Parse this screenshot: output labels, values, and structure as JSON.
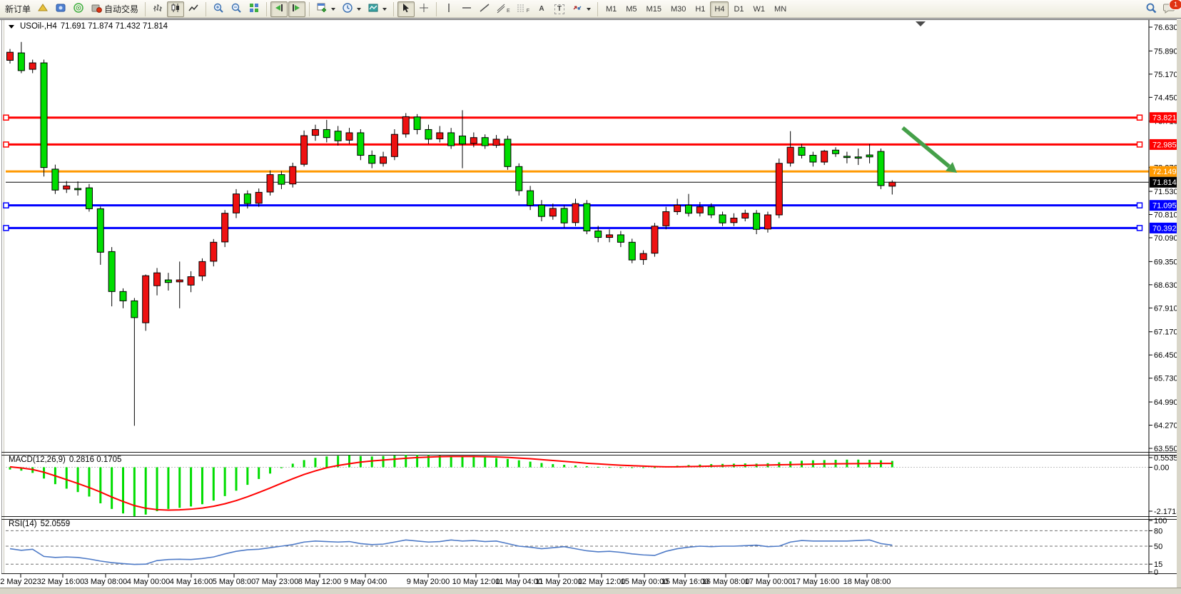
{
  "toolbar": {
    "new_order_label": "新订单",
    "autotrade_label": "自动交易",
    "notification_badge": "1",
    "tool_letters": {
      "text": "A",
      "label": "T",
      "channel": "E",
      "fibo": "F"
    },
    "timeframes": {
      "items": [
        "M1",
        "M5",
        "M15",
        "M30",
        "H1",
        "H4",
        "D1",
        "W1",
        "MN"
      ],
      "active": "H4"
    }
  },
  "chart": {
    "title_symbol": "USOil-,H4",
    "title_ohlc": "71.691 71.874 71.432 71.814",
    "price_axis_ticks": [
      "76.630",
      "75.890",
      "75.170",
      "74.450",
      "73.710",
      "72.270",
      "71.530",
      "70.810",
      "70.090",
      "69.350",
      "68.630",
      "67.910",
      "67.170",
      "66.450",
      "65.730",
      "64.990",
      "64.270",
      "63.550"
    ],
    "hlines": [
      {
        "price": 73.821,
        "label": "73.821",
        "color": "#ff0000",
        "width": 3,
        "to_axis": false
      },
      {
        "price": 72.985,
        "label": "72.985",
        "color": "#ff0000",
        "width": 3,
        "to_axis": false
      },
      {
        "price": 72.149,
        "label": "72.149",
        "color": "#ff9900",
        "width": 3,
        "to_axis": true
      },
      {
        "price": 71.095,
        "label": "71.095",
        "color": "#0000ff",
        "width": 3,
        "to_axis": false
      },
      {
        "price": 70.392,
        "label": "70.392",
        "color": "#0000ff",
        "width": 3,
        "to_axis": false
      }
    ],
    "current_price": {
      "price": 71.814,
      "label": "71.814",
      "color": "#000000"
    },
    "colors": {
      "up": "#ee1111",
      "down": "#00dd00",
      "wick": "#000000",
      "arrow": "#45a049"
    },
    "candles": [
      [
        75.6,
        75.95,
        75.5,
        75.85
      ],
      [
        75.83,
        76.17,
        75.2,
        75.28
      ],
      [
        75.32,
        75.62,
        75.2,
        75.52
      ],
      [
        75.52,
        75.62,
        71.99,
        72.27
      ],
      [
        72.22,
        72.36,
        71.45,
        71.57
      ],
      [
        71.6,
        71.85,
        71.48,
        71.7
      ],
      [
        71.62,
        71.84,
        71.4,
        71.58
      ],
      [
        71.64,
        71.76,
        70.9,
        70.99
      ],
      [
        70.99,
        71.06,
        69.25,
        69.64
      ],
      [
        69.66,
        69.8,
        67.96,
        68.42
      ],
      [
        68.42,
        68.52,
        67.9,
        68.13
      ],
      [
        68.13,
        68.22,
        64.25,
        67.61
      ],
      [
        67.45,
        68.95,
        67.2,
        68.91
      ],
      [
        68.6,
        69.15,
        68.3,
        69.0
      ],
      [
        68.78,
        69.0,
        68.45,
        68.7
      ],
      [
        68.72,
        69.35,
        67.9,
        68.78
      ],
      [
        68.62,
        69.05,
        68.4,
        68.88
      ],
      [
        68.9,
        69.45,
        68.75,
        69.35
      ],
      [
        69.36,
        70.05,
        69.2,
        69.95
      ],
      [
        69.96,
        70.95,
        69.8,
        70.85
      ],
      [
        70.86,
        71.6,
        70.7,
        71.45
      ],
      [
        71.45,
        71.56,
        71.0,
        71.15
      ],
      [
        71.16,
        71.62,
        71.05,
        71.5
      ],
      [
        71.51,
        72.18,
        71.4,
        72.05
      ],
      [
        72.05,
        72.16,
        71.6,
        71.75
      ],
      [
        71.76,
        72.42,
        71.65,
        72.3
      ],
      [
        72.37,
        73.42,
        72.3,
        73.26
      ],
      [
        73.27,
        73.6,
        73.1,
        73.45
      ],
      [
        73.45,
        73.75,
        73.05,
        73.2
      ],
      [
        73.4,
        73.56,
        72.95,
        73.1
      ],
      [
        73.12,
        73.5,
        73.0,
        73.35
      ],
      [
        73.35,
        73.46,
        72.5,
        72.65
      ],
      [
        72.65,
        72.8,
        72.25,
        72.4
      ],
      [
        72.4,
        72.76,
        72.3,
        72.6
      ],
      [
        72.61,
        73.46,
        72.5,
        73.3
      ],
      [
        73.31,
        73.96,
        73.2,
        73.85
      ],
      [
        73.84,
        73.93,
        73.3,
        73.45
      ],
      [
        73.45,
        73.6,
        73.0,
        73.15
      ],
      [
        73.16,
        73.56,
        73.05,
        73.35
      ],
      [
        73.35,
        73.5,
        72.85,
        72.95
      ],
      [
        73.25,
        74.05,
        72.25,
        73.0
      ],
      [
        73.02,
        73.36,
        72.9,
        73.2
      ],
      [
        73.2,
        73.3,
        72.85,
        72.95
      ],
      [
        72.96,
        73.28,
        72.88,
        73.15
      ],
      [
        73.15,
        73.26,
        72.2,
        72.3
      ],
      [
        72.3,
        72.4,
        71.4,
        71.55
      ],
      [
        71.55,
        71.7,
        70.95,
        71.1
      ],
      [
        71.1,
        71.26,
        70.6,
        70.75
      ],
      [
        70.76,
        71.15,
        70.65,
        71.0
      ],
      [
        71.0,
        71.1,
        70.4,
        70.55
      ],
      [
        70.56,
        71.3,
        70.45,
        71.15
      ],
      [
        71.15,
        71.26,
        70.2,
        70.3
      ],
      [
        70.3,
        70.46,
        69.95,
        70.1
      ],
      [
        70.1,
        70.35,
        69.95,
        70.18
      ],
      [
        70.18,
        70.3,
        69.8,
        69.95
      ],
      [
        69.95,
        70.06,
        69.3,
        69.4
      ],
      [
        69.41,
        69.7,
        69.25,
        69.6
      ],
      [
        69.61,
        70.55,
        69.5,
        70.45
      ],
      [
        70.46,
        71.05,
        70.35,
        70.9
      ],
      [
        70.9,
        71.3,
        70.8,
        71.1
      ],
      [
        71.1,
        71.45,
        70.75,
        70.85
      ],
      [
        70.86,
        71.2,
        70.75,
        71.05
      ],
      [
        71.05,
        71.16,
        70.7,
        70.8
      ],
      [
        70.8,
        70.9,
        70.45,
        70.55
      ],
      [
        70.56,
        70.85,
        70.45,
        70.7
      ],
      [
        70.7,
        70.96,
        70.6,
        70.85
      ],
      [
        70.85,
        70.95,
        70.2,
        70.35
      ],
      [
        70.36,
        70.9,
        70.25,
        70.8
      ],
      [
        70.8,
        72.55,
        70.7,
        72.4
      ],
      [
        72.41,
        73.4,
        72.3,
        72.9
      ],
      [
        72.9,
        73.0,
        72.55,
        72.65
      ],
      [
        72.65,
        72.76,
        72.3,
        72.44
      ],
      [
        72.44,
        72.82,
        72.35,
        72.78
      ],
      [
        72.81,
        72.9,
        72.6,
        72.7
      ],
      [
        72.62,
        72.76,
        72.4,
        72.58
      ],
      [
        72.6,
        72.86,
        72.35,
        72.56
      ],
      [
        72.66,
        73.0,
        72.4,
        72.6
      ],
      [
        72.77,
        72.86,
        71.6,
        71.71
      ],
      [
        71.691,
        71.874,
        71.432,
        71.814
      ]
    ]
  },
  "macd": {
    "label": "MACD(12,26,9)",
    "values": "0.2816 0.1705",
    "scale_max": "0.5535",
    "zero": "0.00",
    "scale_min": "-2.1713",
    "colors": {
      "hist": "#00dd00",
      "signal": "#ff0000"
    },
    "histogram": [
      -0.1,
      -0.15,
      -0.25,
      -0.5,
      -0.75,
      -0.95,
      -1.1,
      -1.3,
      -1.6,
      -1.85,
      -2.05,
      -2.17,
      -2.1,
      -1.95,
      -1.85,
      -1.8,
      -1.74,
      -1.64,
      -1.48,
      -1.28,
      -1.04,
      -0.78,
      -0.52,
      -0.28,
      -0.04,
      0.16,
      0.32,
      0.42,
      0.48,
      0.51,
      0.53,
      0.5,
      0.48,
      0.5,
      0.52,
      0.55,
      0.55,
      0.54,
      0.52,
      0.5,
      0.48,
      0.46,
      0.44,
      0.41,
      0.37,
      0.31,
      0.25,
      0.19,
      0.14,
      0.11,
      0.08,
      0.05,
      0.02,
      0.01,
      -0.01,
      -0.02,
      -0.03,
      -0.01,
      0.03,
      0.07,
      0.1,
      0.12,
      0.14,
      0.15,
      0.16,
      0.17,
      0.16,
      0.18,
      0.22,
      0.26,
      0.29,
      0.31,
      0.32,
      0.33,
      0.34,
      0.34,
      0.33,
      0.31,
      0.2816
    ],
    "signal": [
      0.02,
      -0.03,
      -0.1,
      -0.22,
      -0.38,
      -0.55,
      -0.72,
      -0.9,
      -1.1,
      -1.32,
      -1.52,
      -1.7,
      -1.82,
      -1.88,
      -1.9,
      -1.89,
      -1.86,
      -1.81,
      -1.73,
      -1.62,
      -1.48,
      -1.31,
      -1.12,
      -0.92,
      -0.71,
      -0.51,
      -0.32,
      -0.16,
      -0.02,
      0.08,
      0.16,
      0.23,
      0.28,
      0.32,
      0.36,
      0.4,
      0.43,
      0.45,
      0.47,
      0.48,
      0.48,
      0.48,
      0.47,
      0.46,
      0.44,
      0.41,
      0.38,
      0.34,
      0.3,
      0.26,
      0.22,
      0.18,
      0.15,
      0.12,
      0.09,
      0.07,
      0.05,
      0.03,
      0.02,
      0.02,
      0.03,
      0.04,
      0.05,
      0.06,
      0.07,
      0.08,
      0.09,
      0.1,
      0.11,
      0.12,
      0.13,
      0.14,
      0.15,
      0.155,
      0.16,
      0.163,
      0.166,
      0.169,
      0.1705
    ]
  },
  "rsi": {
    "label": "RSI(14)",
    "value": "52.0559",
    "scale": [
      "100",
      "80",
      "50",
      "15",
      "0"
    ],
    "levels": [
      80,
      50,
      15
    ],
    "color": "#4f7bc7",
    "values": [
      45,
      42,
      44,
      30,
      28,
      29,
      28,
      25,
      21,
      18,
      16,
      14.5,
      15,
      22,
      24,
      24.5,
      24,
      26,
      29,
      35,
      40,
      43,
      44,
      47,
      50,
      53,
      58,
      60,
      59,
      58,
      59,
      55,
      53,
      54,
      58,
      62,
      60,
      58,
      59,
      62,
      60,
      61,
      59,
      60,
      55,
      50,
      48,
      45,
      47,
      49,
      45,
      41,
      39,
      40,
      38,
      35,
      33,
      32,
      40,
      45,
      48,
      50,
      49,
      50,
      50,
      51,
      52,
      49,
      50,
      58,
      61,
      60,
      60,
      60,
      60,
      61,
      62,
      55,
      52.0559
    ]
  },
  "time_axis": {
    "labels": [
      "2 May 2023",
      "2 May 16:00",
      "3 May 08:00",
      "4 May 00:00",
      "4 May 16:00",
      "5 May 08:00",
      "7 May 23:00",
      "8 May 12:00",
      "9 May 04:00",
      "9 May 20:00",
      "10 May 12:00",
      "11 May 04:00",
      "11 May 20:00",
      "12 May 12:00",
      "15 May 00:00",
      "15 May 16:00",
      "16 May 08:00",
      "17 May 00:00",
      "17 May 16:00",
      "18 May 08:00"
    ]
  }
}
